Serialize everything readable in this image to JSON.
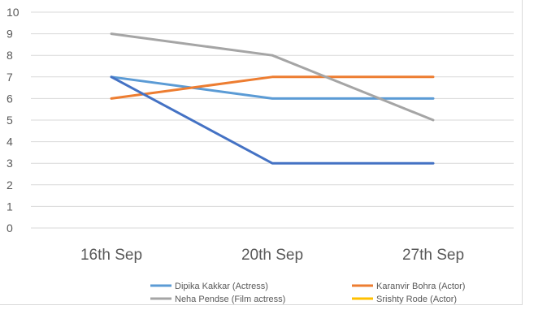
{
  "chart_data": {
    "type": "line",
    "categories": [
      "16th Sep",
      "20th Sep",
      "27th Sep"
    ],
    "series": [
      {
        "name": "Dipika Kakkar (Actress)",
        "values": [
          7,
          6,
          6
        ],
        "color": "#5b9bd5"
      },
      {
        "name": "Karanvir Bohra (Actor)",
        "values": [
          6,
          7,
          7
        ],
        "color": "#ed7d31"
      },
      {
        "name": "Neha Pendse (Film actress)",
        "values": [
          9,
          8,
          5
        ],
        "color": "#a5a5a5"
      },
      {
        "name": "Srishty Rode (Actor)",
        "values": [
          null,
          null,
          null
        ],
        "color": "#ffc000"
      },
      {
        "name": "",
        "values": [
          7,
          3,
          3
        ],
        "color": "#4472c4"
      }
    ],
    "ylim": [
      0,
      10
    ],
    "yticks": [
      0,
      1,
      2,
      3,
      4,
      5,
      6,
      7,
      8,
      9,
      10
    ],
    "grid": true,
    "legend_position": "bottom",
    "title": "",
    "xlabel": "",
    "ylabel": ""
  }
}
